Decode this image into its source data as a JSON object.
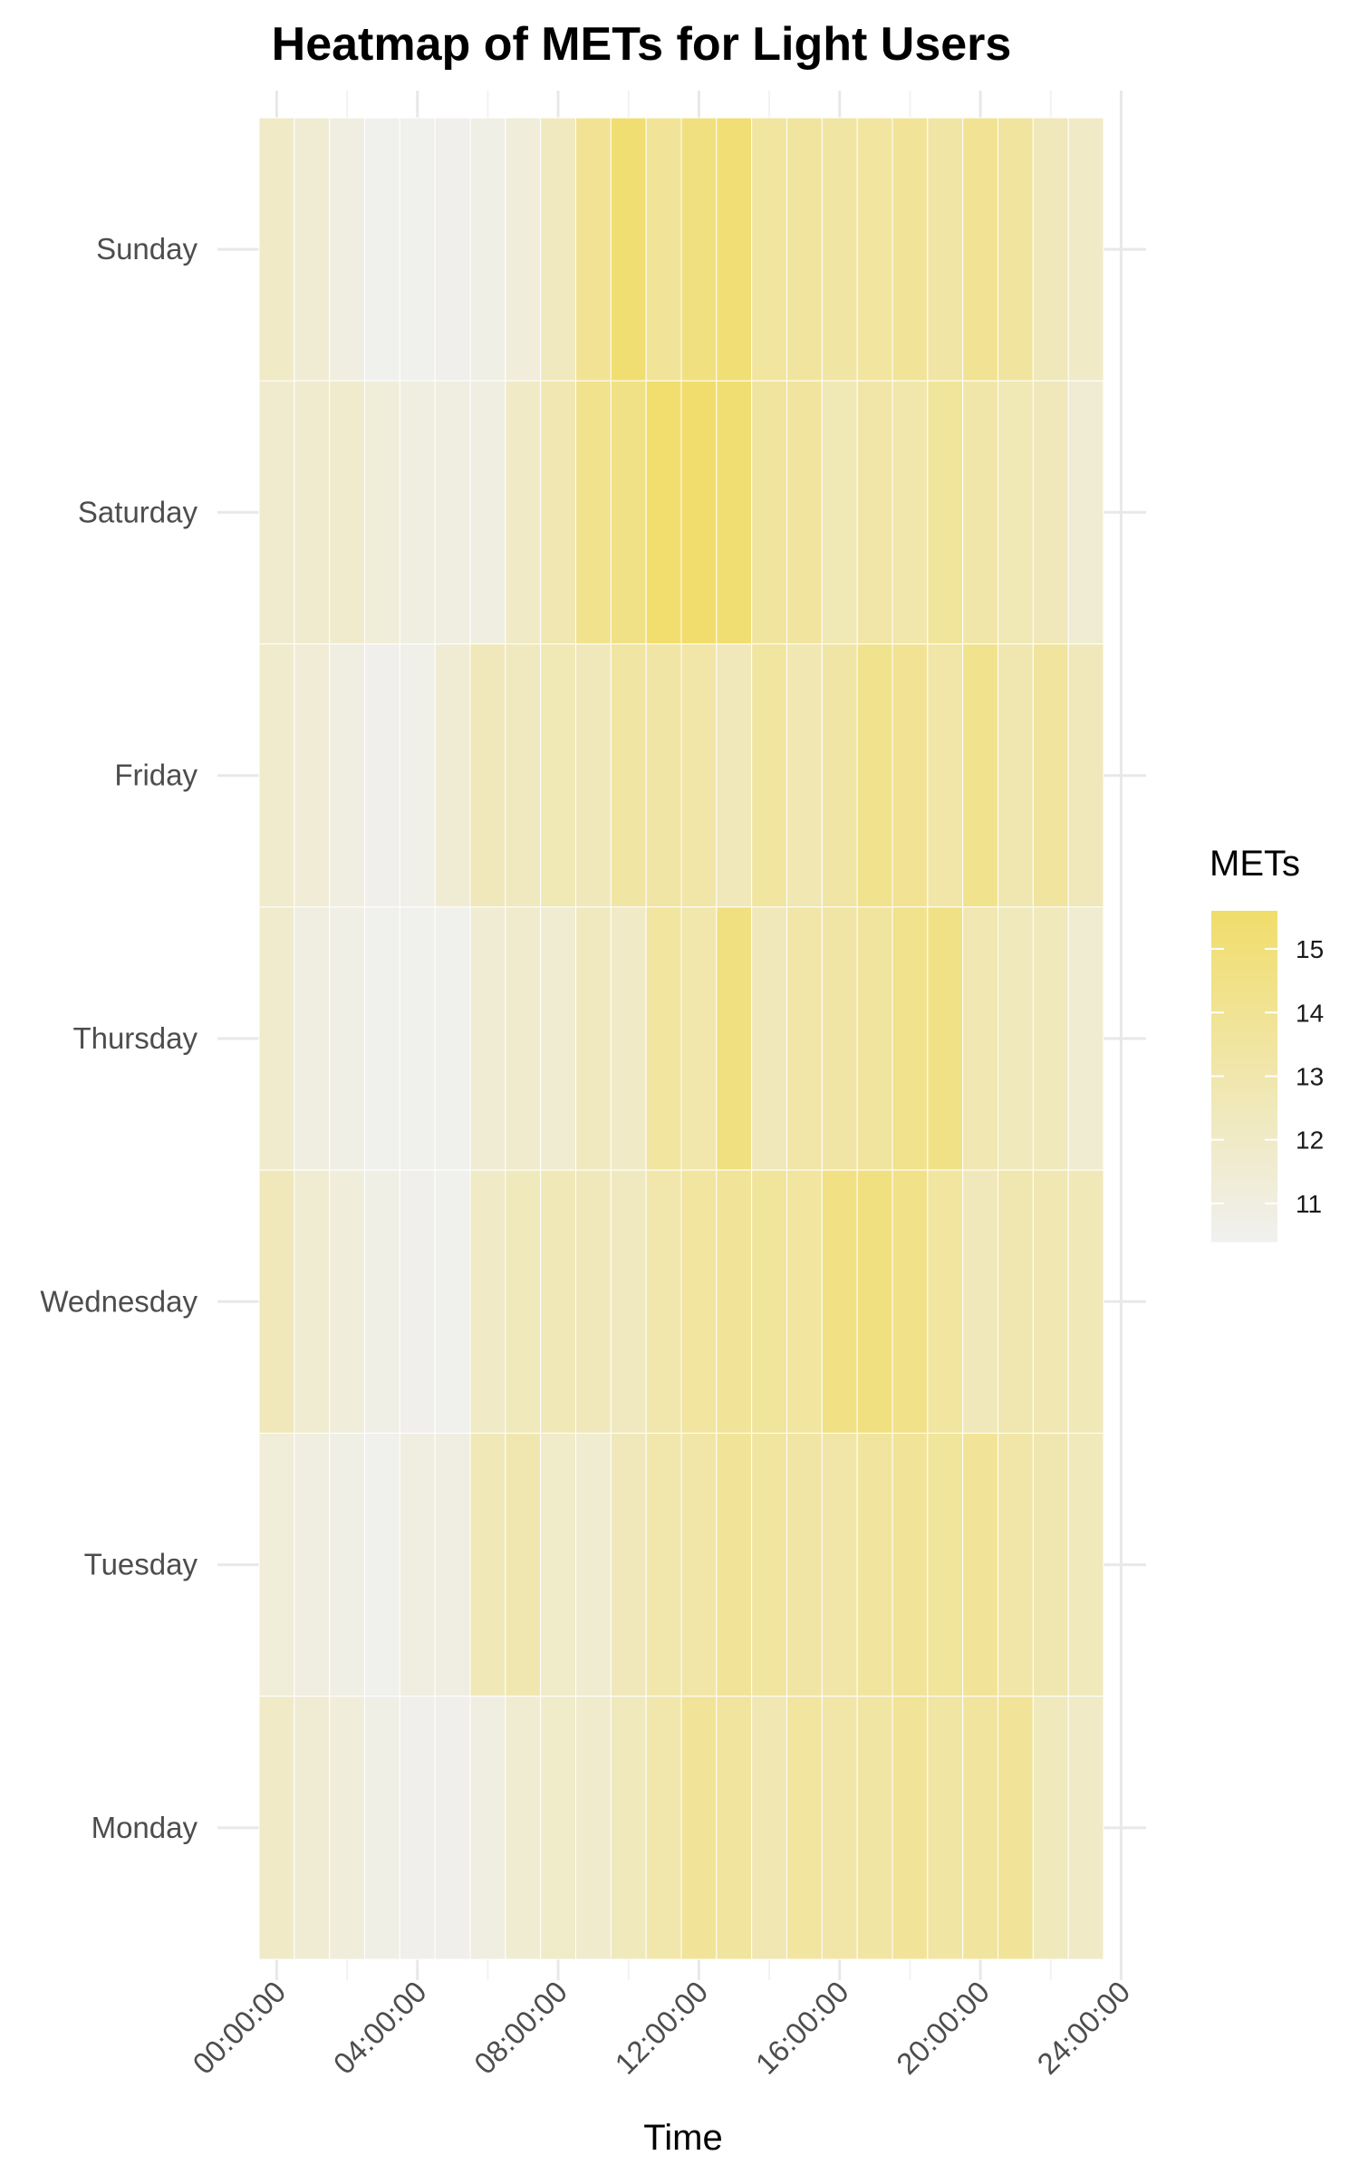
{
  "chart_data": {
    "type": "heatmap",
    "title": "Heatmap of METs for Light Users",
    "xlabel": "Time",
    "ylabel": "",
    "x_ticks": [
      "00:00:00",
      "04:00:00",
      "08:00:00",
      "12:00:00",
      "16:00:00",
      "20:00:00",
      "24:00:00"
    ],
    "x_hours": [
      0,
      1,
      2,
      3,
      4,
      5,
      6,
      7,
      8,
      9,
      10,
      11,
      12,
      13,
      14,
      15,
      16,
      17,
      18,
      19,
      20,
      21,
      22,
      23
    ],
    "days": [
      "Sunday",
      "Saturday",
      "Friday",
      "Thursday",
      "Wednesday",
      "Tuesday",
      "Monday"
    ],
    "values": [
      [
        12.0,
        11.5,
        11.0,
        10.5,
        10.5,
        10.6,
        10.8,
        11.2,
        12.3,
        14.0,
        15.3,
        13.8,
        14.8,
        15.2,
        13.5,
        13.6,
        13.4,
        13.5,
        13.8,
        13.3,
        14.0,
        13.6,
        12.5,
        12.0
      ],
      [
        11.7,
        11.7,
        11.8,
        11.3,
        11.0,
        11.0,
        11.0,
        12.0,
        12.8,
        14.2,
        14.5,
        15.4,
        15.5,
        15.3,
        13.6,
        13.6,
        12.7,
        13.2,
        13.0,
        13.7,
        13.1,
        12.7,
        12.5,
        11.5
      ],
      [
        11.8,
        11.4,
        11.0,
        10.6,
        10.7,
        11.5,
        12.5,
        12.3,
        12.7,
        12.5,
        13.4,
        13.3,
        13.2,
        12.5,
        13.5,
        12.8,
        13.3,
        14.2,
        14.0,
        13.2,
        14.2,
        12.9,
        13.6,
        12.5
      ],
      [
        11.8,
        11.0,
        10.8,
        10.5,
        10.5,
        10.5,
        11.5,
        11.8,
        11.6,
        12.3,
        12.0,
        13.5,
        13.0,
        14.8,
        12.5,
        13.2,
        13.3,
        13.6,
        14.2,
        14.5,
        12.8,
        12.4,
        12.4,
        11.6
      ],
      [
        12.5,
        11.6,
        11.2,
        10.8,
        10.6,
        10.5,
        12.0,
        12.4,
        12.6,
        12.5,
        12.3,
        13.0,
        13.5,
        13.8,
        13.7,
        13.5,
        14.6,
        14.8,
        14.4,
        13.5,
        12.5,
        12.9,
        12.8,
        12.6
      ],
      [
        11.3,
        11.0,
        10.8,
        10.5,
        11.0,
        10.9,
        12.6,
        12.9,
        11.9,
        11.6,
        12.5,
        13.0,
        13.2,
        13.8,
        13.5,
        13.3,
        13.2,
        13.6,
        13.8,
        13.7,
        13.8,
        13.2,
        12.9,
        12.4
      ],
      [
        12.0,
        11.5,
        11.2,
        10.8,
        10.6,
        10.6,
        11.0,
        11.6,
        11.9,
        11.8,
        12.4,
        13.0,
        13.8,
        13.6,
        12.8,
        13.5,
        13.2,
        13.4,
        13.8,
        13.4,
        13.6,
        13.8,
        12.4,
        12.0
      ]
    ],
    "legend": {
      "title": "METs",
      "ticks": [
        15,
        14,
        13,
        12,
        11
      ],
      "min": 10.4,
      "max": 15.6
    },
    "colors": {
      "low": "#f0f0f0",
      "high": "#f1dd6a",
      "tile_border": "#ffffff",
      "grid": "#e8e8e8"
    },
    "grid": true,
    "legend_position": "right"
  }
}
